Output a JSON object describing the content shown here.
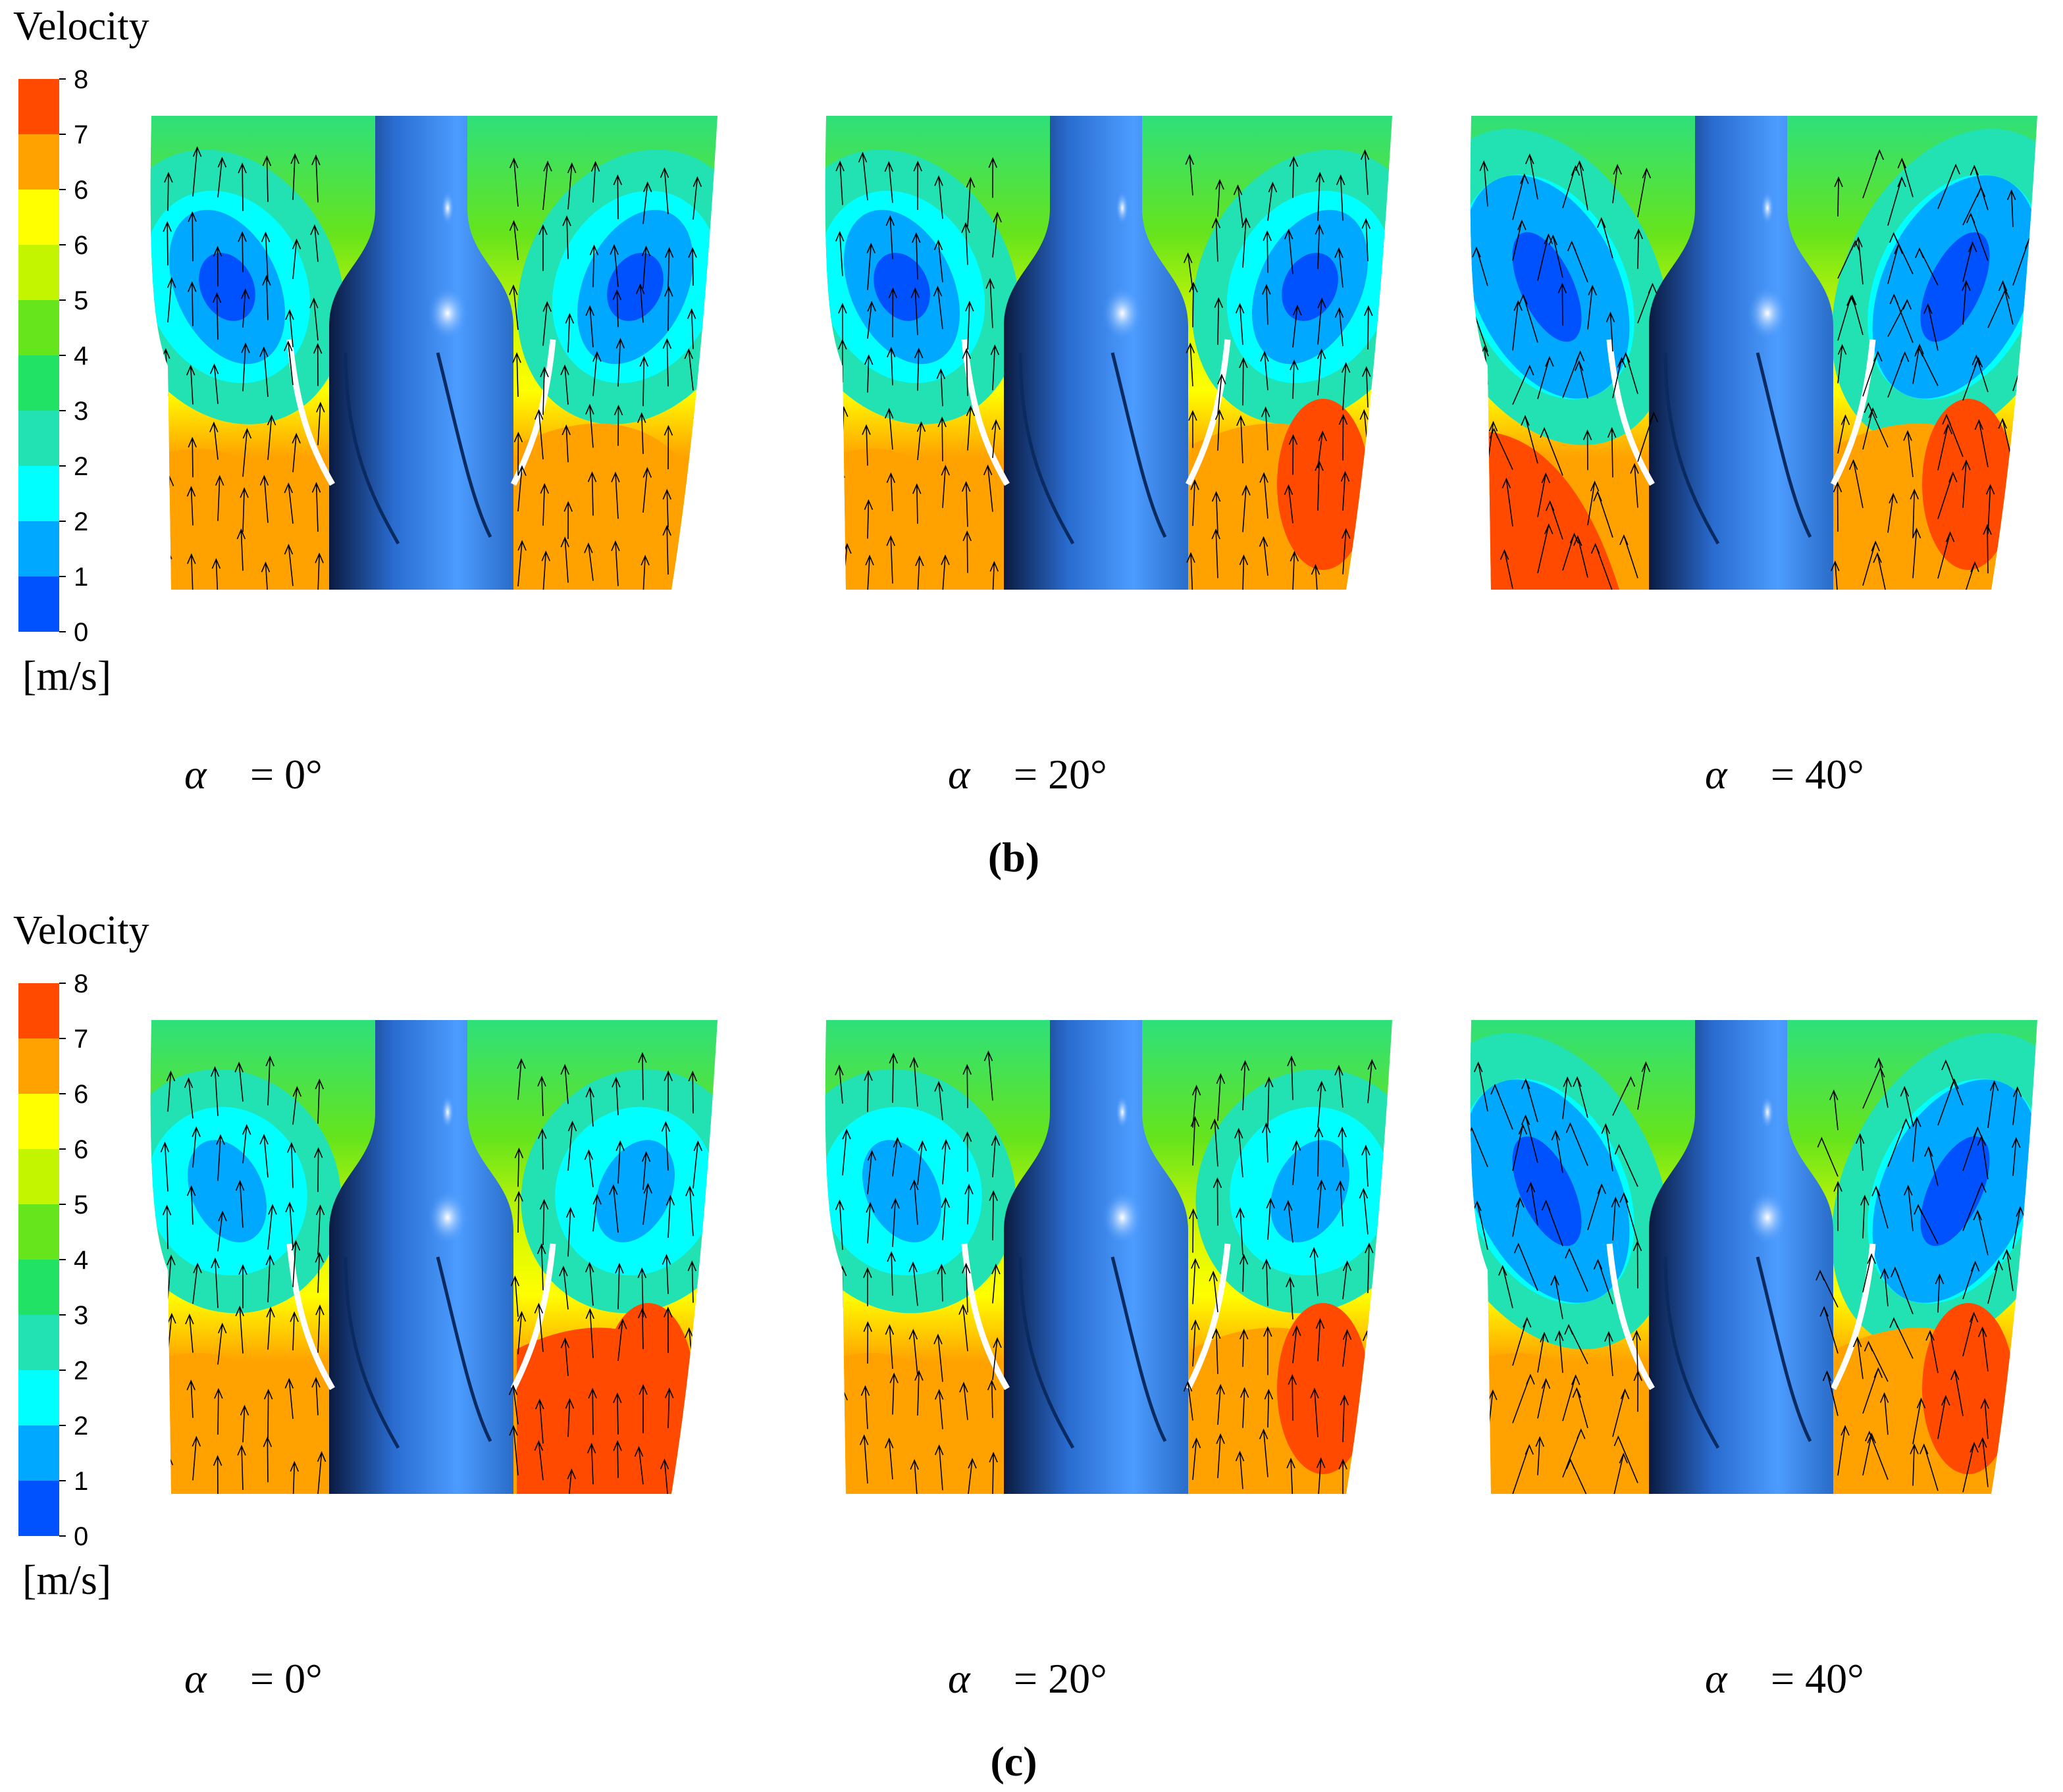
{
  "panels": [
    {
      "colorbar": {
        "title": "Velocity",
        "unit": "[m/s]",
        "tick_labels": [
          "8",
          "7",
          "6",
          "6",
          "5",
          "4",
          "3",
          "2",
          "2",
          "1",
          "0"
        ],
        "colors": [
          "#ff4a00",
          "#ffa200",
          "#ffff00",
          "#c4f500",
          "#66e41c",
          "#22e266",
          "#22e2b4",
          "#00ffff",
          "#00a8ff",
          "#0052ff"
        ]
      },
      "plots": [
        {
          "symbol": "α",
          "text": "= 0°"
        },
        {
          "symbol": "α",
          "text": "= 20°"
        },
        {
          "symbol": "α",
          "text": "= 40°"
        }
      ],
      "caption": "(b)"
    },
    {
      "colorbar": {
        "title": "Velocity",
        "unit": "[m/s]",
        "tick_labels": [
          "8",
          "7",
          "6",
          "6",
          "5",
          "4",
          "3",
          "2",
          "2",
          "1",
          "0"
        ],
        "colors": [
          "#ff4a00",
          "#ffa200",
          "#ffff00",
          "#c4f500",
          "#66e41c",
          "#22e266",
          "#22e2b4",
          "#00ffff",
          "#00a8ff",
          "#0052ff"
        ]
      },
      "plots": [
        {
          "symbol": "α",
          "text": "= 0°"
        },
        {
          "symbol": "α",
          "text": "= 20°"
        },
        {
          "symbol": "α",
          "text": "= 40°"
        }
      ],
      "caption": "(c)"
    }
  ]
}
